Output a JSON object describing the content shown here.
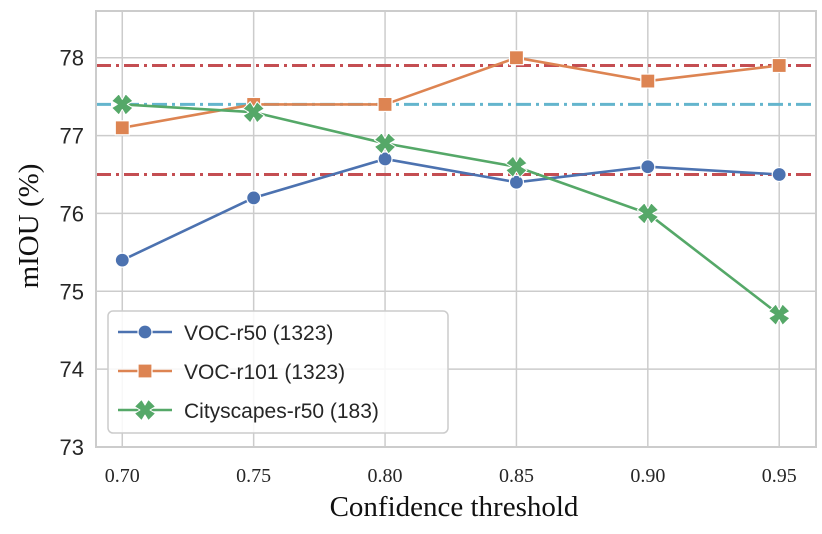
{
  "chart_data": {
    "type": "line",
    "xlabel": "Confidence threshold",
    "ylabel": "mIOU (%)",
    "x": [
      0.7,
      0.75,
      0.8,
      0.85,
      0.9,
      0.95
    ],
    "x_tick_labels": [
      "0.70",
      "0.75",
      "0.80",
      "0.85",
      "0.90",
      "0.95"
    ],
    "xlim": [
      0.69,
      0.964
    ],
    "ylim": [
      73,
      78.6
    ],
    "y_ticks": [
      73,
      74,
      75,
      76,
      77,
      78
    ],
    "y_tick_labels": [
      "73",
      "74",
      "75",
      "76",
      "77",
      "78"
    ],
    "grid": true,
    "legend_position": "bottom-left",
    "series": [
      {
        "name": "VOC-r50 (1323)",
        "values": [
          75.4,
          76.2,
          76.7,
          76.4,
          76.6,
          76.5
        ],
        "color": "#4c72b0",
        "marker": "circle"
      },
      {
        "name": "VOC-r101 (1323)",
        "values": [
          77.1,
          77.4,
          77.4,
          78.0,
          77.7,
          77.9
        ],
        "color": "#dd8452",
        "marker": "square"
      },
      {
        "name": "Cityscapes-r50 (183)",
        "values": [
          77.4,
          77.3,
          76.9,
          76.6,
          76.0,
          74.7
        ],
        "color": "#55a868",
        "marker": "x"
      }
    ],
    "reference_lines": [
      {
        "y": 77.9,
        "color": "#c44e52",
        "style": "dashdot"
      },
      {
        "y": 77.4,
        "color": "#64b5cd",
        "style": "dashdot"
      },
      {
        "y": 76.5,
        "color": "#c44e52",
        "style": "dashdot"
      }
    ]
  }
}
